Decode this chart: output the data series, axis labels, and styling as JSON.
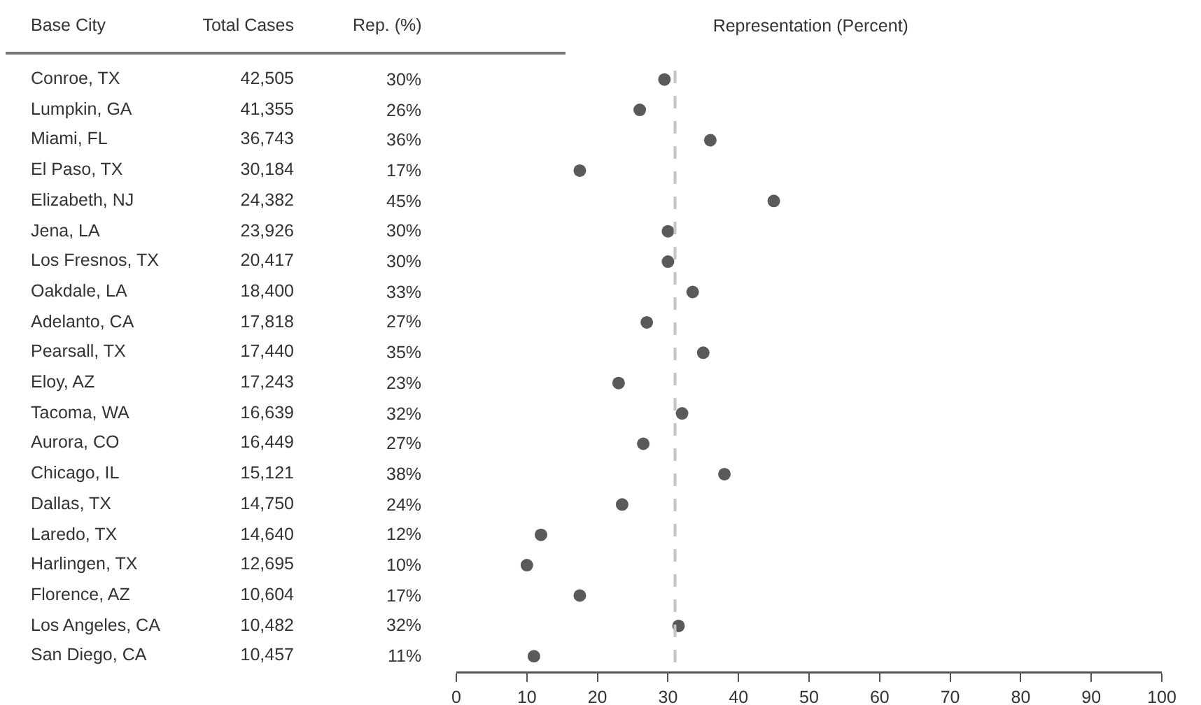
{
  "chart_data": [
    {
      "type": "other",
      "ylabel": "Base City",
      "categories": [
        "Conroe, TX",
        "Lumpkin, GA",
        "Miami, FL",
        "El Paso, TX",
        "Elizabeth, NJ",
        "Jena, LA",
        "Los Fresnos, TX",
        "Oakdale, LA",
        "Adelanto, CA",
        "Pearsall, TX",
        "Eloy, AZ",
        "Tacoma, WA",
        "Aurora, CO",
        "Chicago, IL",
        "Dallas, TX",
        "Laredo, TX",
        "Harlingen, TX",
        "Florence, AZ",
        "Los Angeles, CA",
        "San Diego, CA"
      ],
      "series": [
        {
          "name": "Total Cases",
          "values": [
            42505,
            41355,
            36743,
            30184,
            24382,
            23926,
            20417,
            18400,
            17818,
            17440,
            17243,
            16639,
            16449,
            15121,
            14750,
            14640,
            12695,
            10604,
            10482,
            10457
          ],
          "value_labels": [
            "42,505",
            "41,355",
            "36,743",
            "30,184",
            "24,382",
            "23,926",
            "20,417",
            "18,400",
            "17,818",
            "17,440",
            "17,243",
            "16,639",
            "16,449",
            "15,121",
            "14,750",
            "14,640",
            "12,695",
            "10,604",
            "10,482",
            "10,457"
          ]
        }
      ]
    },
    {
      "type": "scatter",
      "title": "Representation (Percent)",
      "categories": [
        null,
        null,
        null,
        null,
        null,
        null,
        null,
        null,
        null,
        null,
        null,
        null,
        null,
        null,
        null,
        null,
        null,
        null,
        null,
        null
      ],
      "series": [
        {
          "name": "Rep. (%)",
          "color": "#5a5a5a",
          "values": [
            29.5,
            26,
            36,
            17.5,
            45,
            30,
            30,
            33.5,
            27,
            35,
            23,
            32,
            26.5,
            38,
            23.5,
            12,
            10,
            17.5,
            31.5,
            11
          ],
          "value_labels": [
            "30%",
            "26%",
            "36%",
            "17%",
            "45%",
            "30%",
            "30%",
            "33%",
            "27%",
            "35%",
            "23%",
            "32%",
            "27%",
            "38%",
            "24%",
            "12%",
            "10%",
            "17%",
            "32%",
            "11%"
          ]
        }
      ],
      "orientation": "horizontal",
      "marker": "circle",
      "grid": false,
      "tick_labels": "x",
      "xlim": [
        0,
        100
      ],
      "xticks": [
        0,
        10,
        20,
        30,
        40,
        50,
        60,
        70,
        80,
        90,
        100
      ],
      "ref_lines": [
        {
          "axis": "x",
          "value": 31,
          "color": "#c4c4c4",
          "line_style": "dashed"
        }
      ]
    }
  ]
}
